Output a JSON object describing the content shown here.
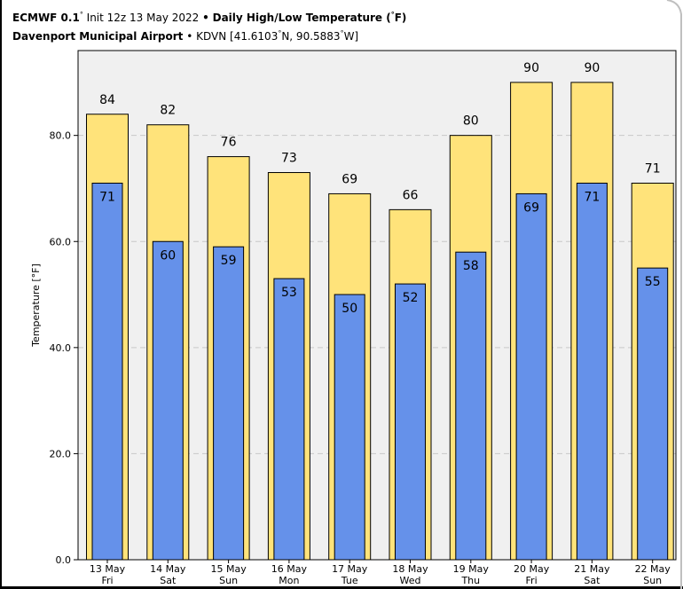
{
  "header": {
    "model": "ECMWF 0.1",
    "init": "Init 12z 13 May 2022",
    "bullet": "•",
    "product": "Daily High/Low Temperature (",
    "product_unit": "F)",
    "location": "Davenport Municipal Airport",
    "station": "KDVN [41.6103",
    "lat_suffix": "N, 90.5883",
    "lon_suffix": "W]"
  },
  "chart_data": {
    "type": "bar",
    "title": "Daily High/Low Temperature (°F)",
    "ylabel": "Temperature [°F]",
    "xlabel": "",
    "ylim": [
      0,
      96
    ],
    "yticks": [
      0,
      20,
      40,
      60,
      80
    ],
    "ytick_labels": [
      "0.0",
      "20.0",
      "40.0",
      "60.0",
      "80.0"
    ],
    "grid": true,
    "categories": [
      {
        "date": "13 May",
        "day": "Fri"
      },
      {
        "date": "14 May",
        "day": "Sat"
      },
      {
        "date": "15 May",
        "day": "Sun"
      },
      {
        "date": "16 May",
        "day": "Mon"
      },
      {
        "date": "17 May",
        "day": "Tue"
      },
      {
        "date": "18 May",
        "day": "Wed"
      },
      {
        "date": "19 May",
        "day": "Thu"
      },
      {
        "date": "20 May",
        "day": "Fri"
      },
      {
        "date": "21 May",
        "day": "Sat"
      },
      {
        "date": "22 May",
        "day": "Sun"
      }
    ],
    "series": [
      {
        "role": "high",
        "color": "#ffe37a",
        "values": [
          84,
          82,
          76,
          73,
          69,
          66,
          80,
          90,
          90,
          71
        ]
      },
      {
        "role": "low",
        "color": "#6591ea",
        "values": [
          71,
          60,
          59,
          53,
          50,
          52,
          58,
          69,
          71,
          55
        ]
      }
    ]
  }
}
